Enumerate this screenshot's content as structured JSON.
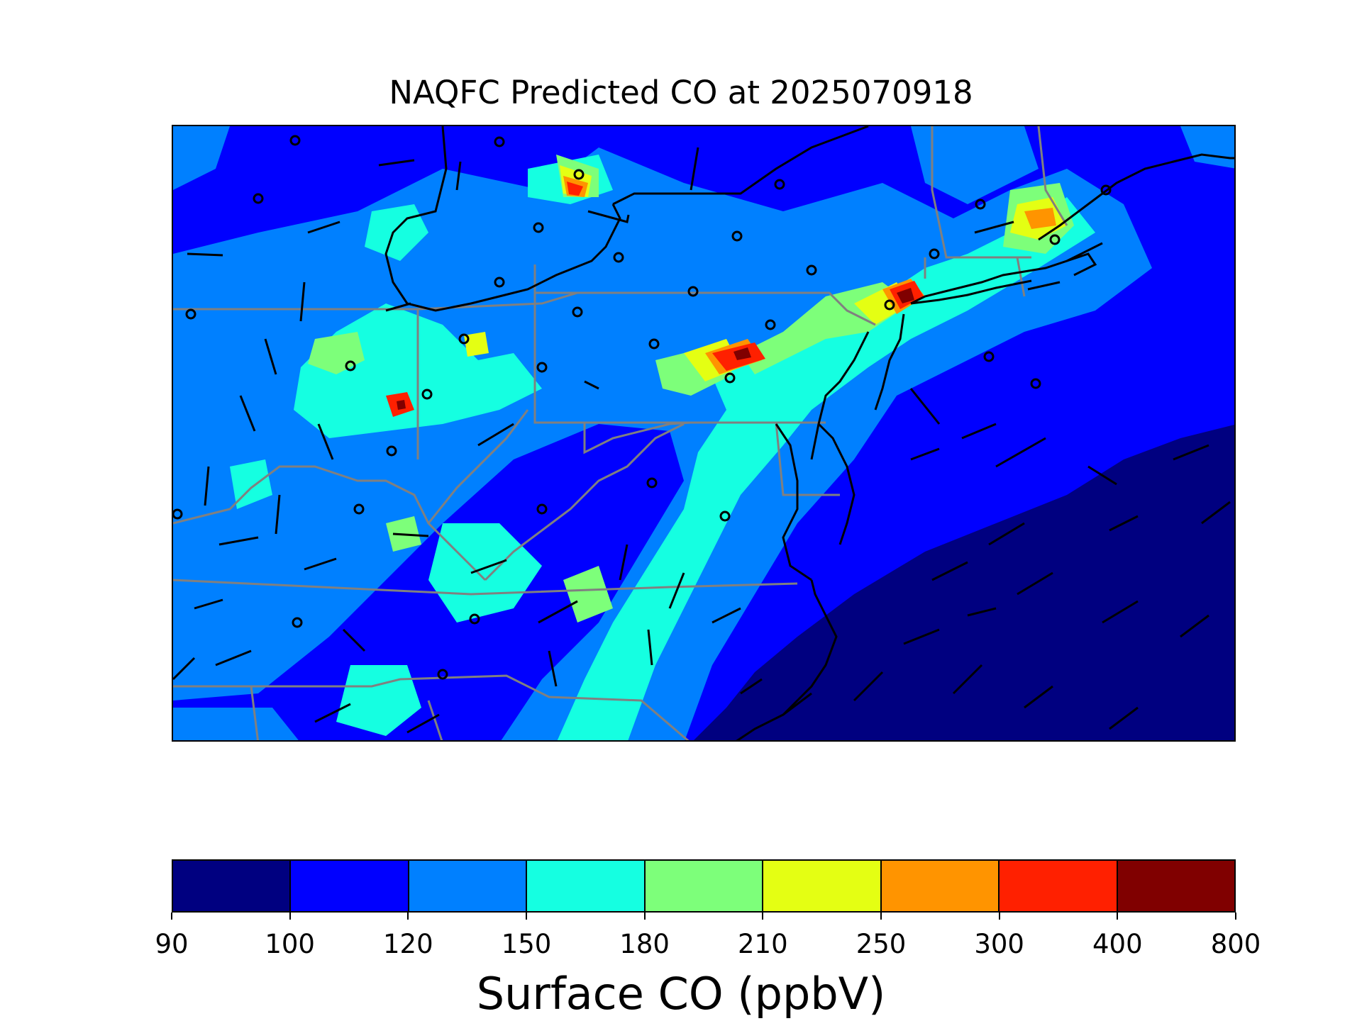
{
  "title": "NAQFC Predicted CO at 2025070918",
  "colorbar": {
    "label": "Surface CO (ppbV)",
    "ticks": [
      "90",
      "100",
      "120",
      "150",
      "180",
      "210",
      "250",
      "300",
      "400",
      "800"
    ],
    "colors": [
      "#000080",
      "#0000ff",
      "#0080ff",
      "#15ffe1",
      "#7dff7a",
      "#e4ff13",
      "#ff9400",
      "#ff2000",
      "#800000"
    ]
  },
  "map": {
    "region": "Eastern United States / Mid-Atlantic",
    "field": "Surface CO",
    "coastline_color": "#000000",
    "state_border_color": "#808080"
  }
}
